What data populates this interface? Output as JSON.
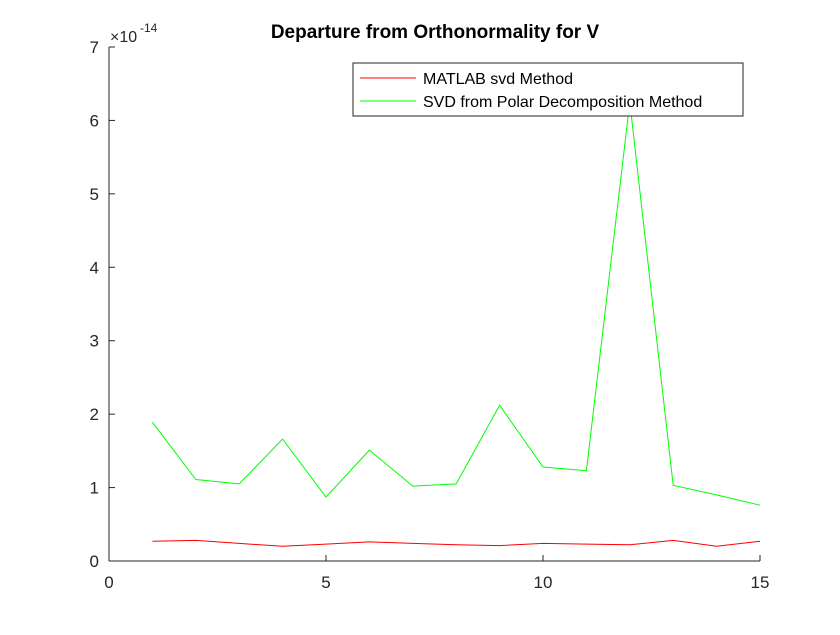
{
  "chart_data": {
    "type": "line",
    "title": "Departure from Orthonormality for V",
    "exponent_base": "×10",
    "exponent_power": "-14",
    "xlim": [
      0,
      15
    ],
    "ylim": [
      0,
      7
    ],
    "xticks": [
      0,
      5,
      10,
      15
    ],
    "yticks": [
      0,
      1,
      2,
      3,
      4,
      5,
      6,
      7
    ],
    "x": [
      1,
      2,
      3,
      4,
      5,
      6,
      7,
      8,
      9,
      10,
      11,
      12,
      13,
      14,
      15
    ],
    "grid": false,
    "legend_position": "top-right",
    "series": [
      {
        "name": "MATLAB svd Method",
        "color": "#ff0000",
        "values": [
          0.27,
          0.28,
          0.24,
          0.2,
          0.23,
          0.26,
          0.24,
          0.22,
          0.21,
          0.24,
          0.23,
          0.22,
          0.28,
          0.2,
          0.27
        ]
      },
      {
        "name": "SVD from Polar Decomposition Method",
        "color": "#00ff00",
        "values": [
          1.89,
          1.11,
          1.05,
          1.66,
          0.87,
          1.51,
          1.02,
          1.05,
          2.12,
          1.28,
          1.23,
          6.25,
          1.03,
          0.9,
          0.76
        ]
      }
    ]
  }
}
